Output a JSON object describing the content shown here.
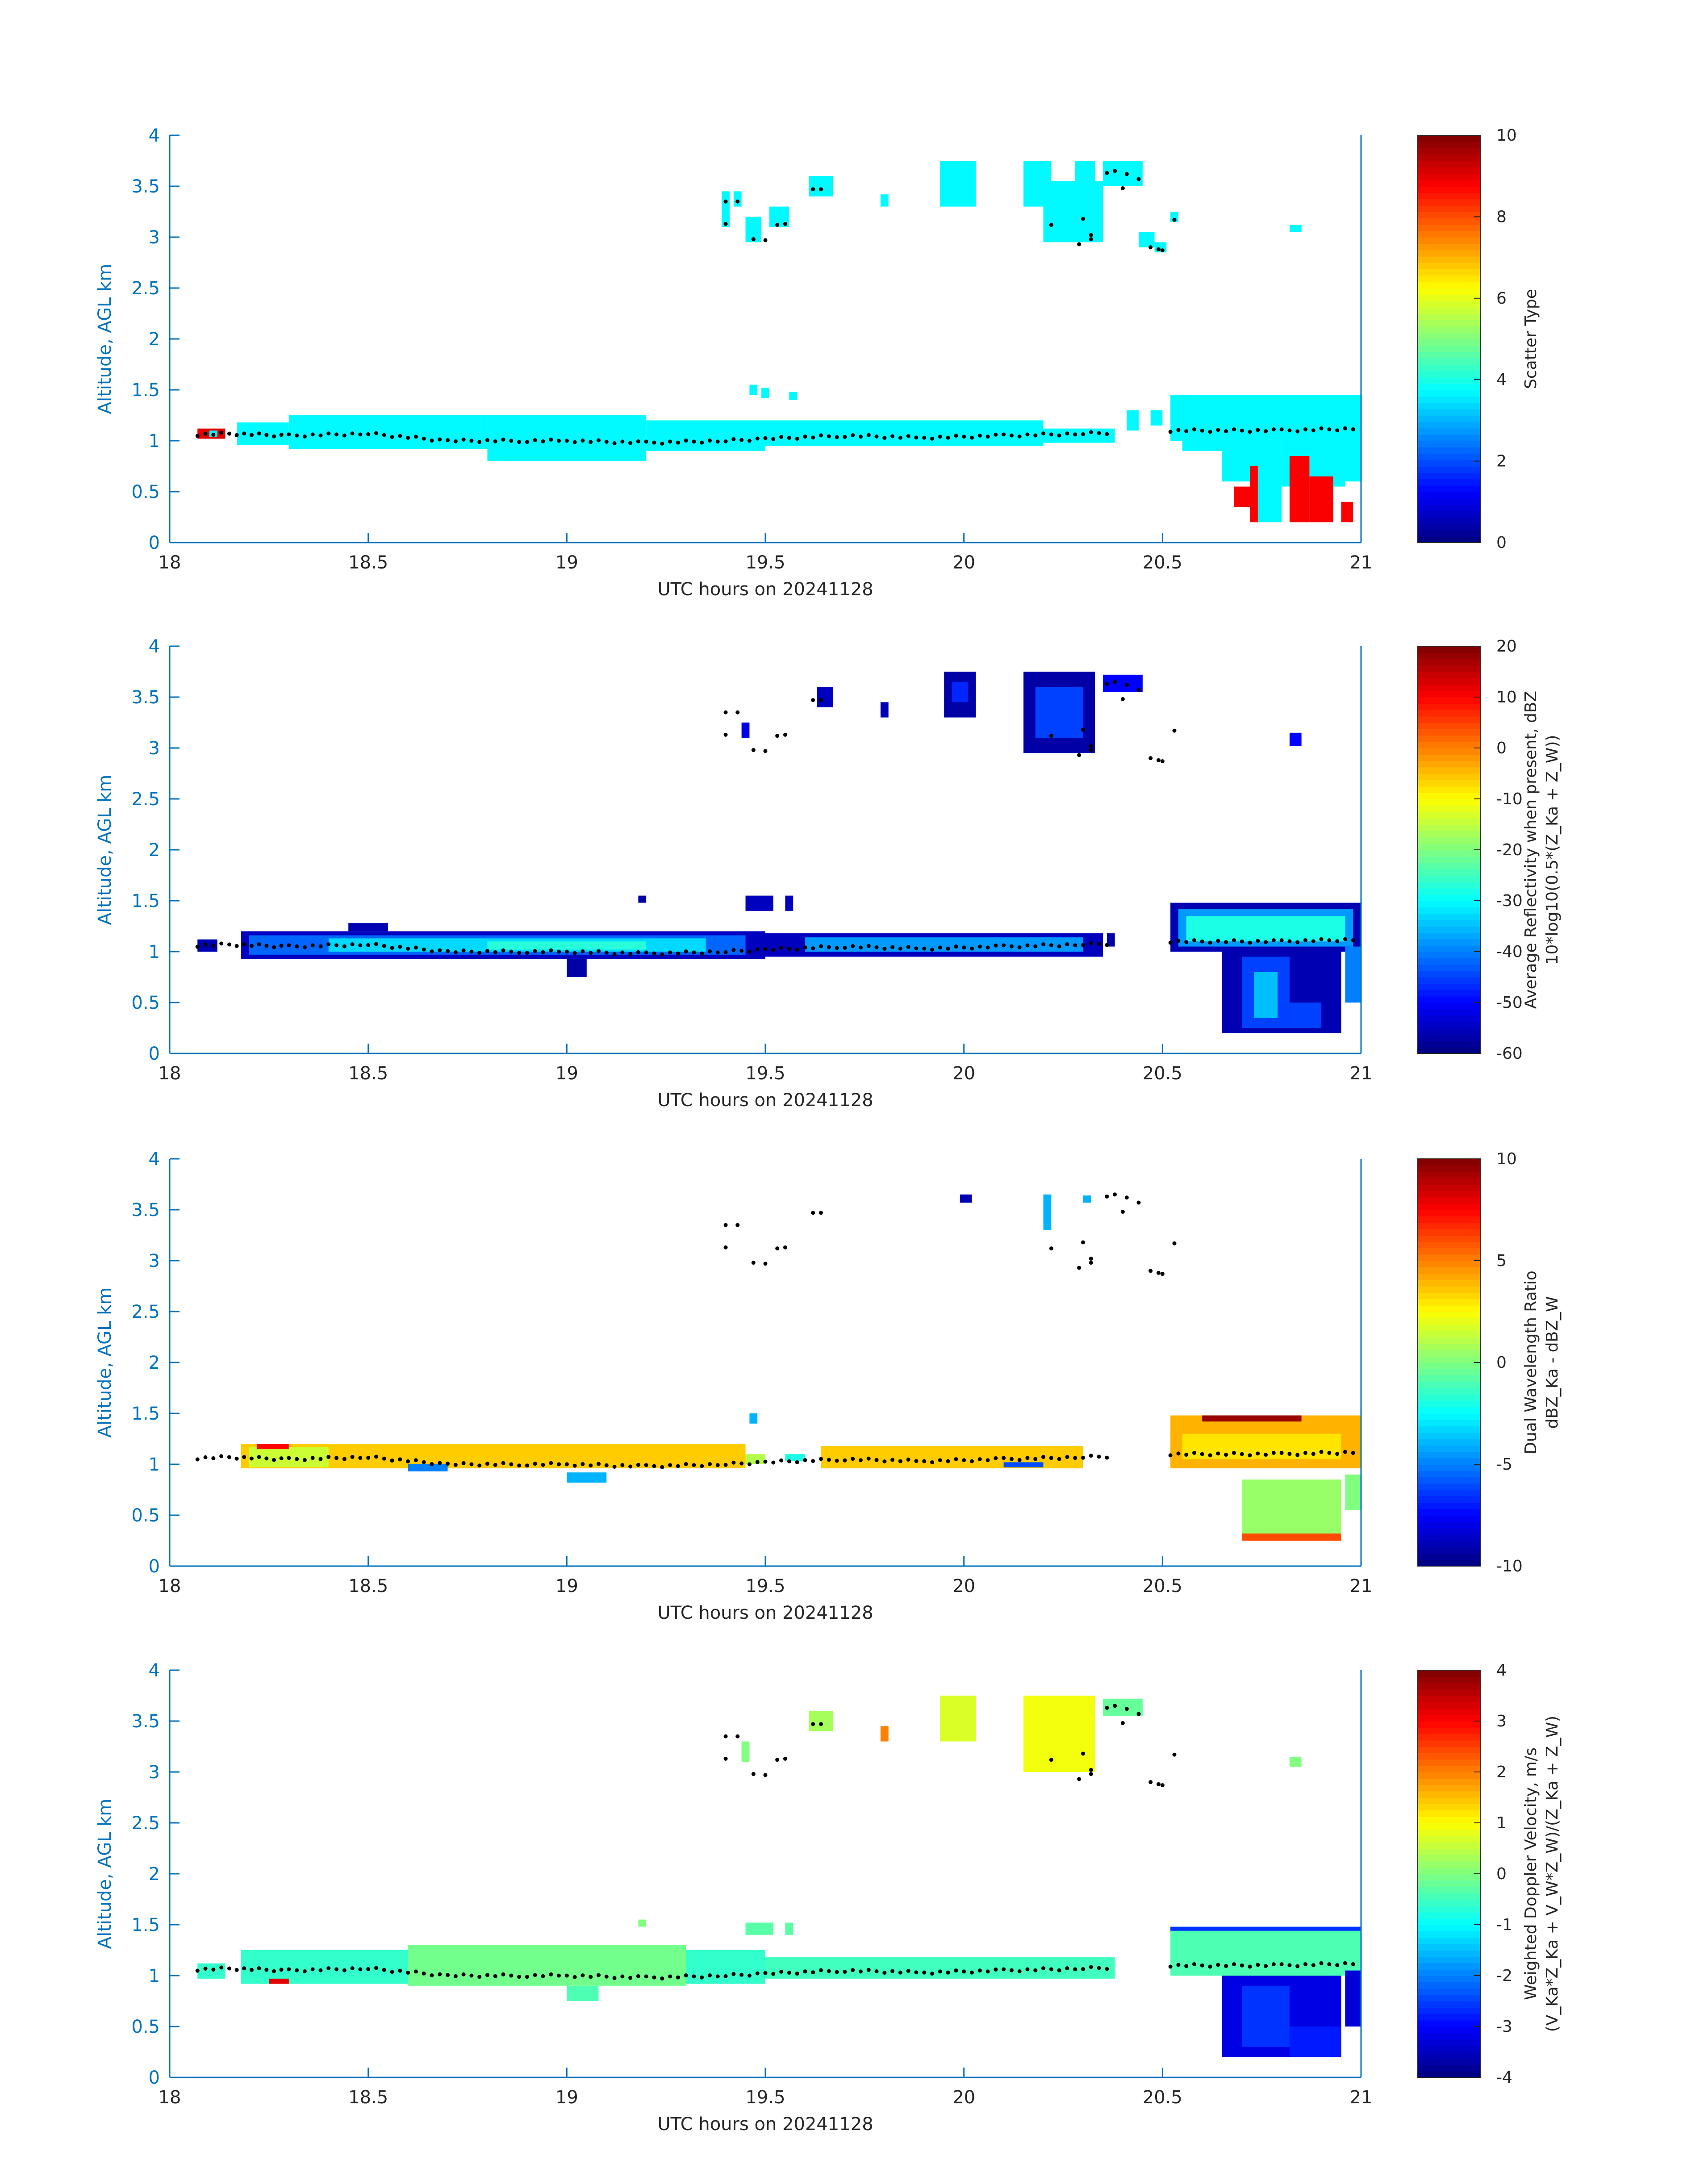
{
  "figure": {
    "date_label": "UTC hours on 20241128",
    "colormap": "jet"
  },
  "chart_data": [
    {
      "type": "heatmap",
      "ylabel": "Altitude, AGL km",
      "xlabel": "UTC hours on 20241128",
      "xlim": [
        18,
        21
      ],
      "ylim": [
        0,
        4
      ],
      "xticks": [
        "18",
        "18.5",
        "19",
        "19.5",
        "20",
        "20.5",
        "21"
      ],
      "yticks": [
        "0",
        "0.5",
        "1",
        "1.5",
        "2",
        "2.5",
        "3",
        "3.5",
        "4"
      ],
      "colorbar": {
        "label": [
          "Scatter Type"
        ],
        "clim": [
          0,
          10
        ],
        "ticks": [
          "0",
          "2",
          "4",
          "6",
          "8",
          "10"
        ]
      },
      "regions": [
        {
          "x0": 18.07,
          "x1": 18.14,
          "y0": 1.02,
          "y1": 1.12,
          "v": 9
        },
        {
          "x0": 18.1,
          "x1": 18.12,
          "y0": 1.04,
          "y1": 1.1,
          "v": 3.7
        },
        {
          "x0": 18.17,
          "x1": 18.3,
          "y0": 0.96,
          "y1": 1.18,
          "v": 3.7
        },
        {
          "x0": 18.3,
          "x1": 18.8,
          "y0": 0.92,
          "y1": 1.25,
          "v": 3.7
        },
        {
          "x0": 18.8,
          "x1": 19.2,
          "y0": 0.8,
          "y1": 1.25,
          "v": 3.7
        },
        {
          "x0": 19.2,
          "x1": 19.5,
          "y0": 0.9,
          "y1": 1.2,
          "v": 3.7
        },
        {
          "x0": 19.5,
          "x1": 20.2,
          "y0": 0.95,
          "y1": 1.2,
          "v": 3.7
        },
        {
          "x0": 20.2,
          "x1": 20.38,
          "y0": 0.98,
          "y1": 1.12,
          "v": 3.7
        },
        {
          "x0": 20.41,
          "x1": 20.44,
          "y0": 1.1,
          "y1": 1.3,
          "v": 3.7
        },
        {
          "x0": 20.47,
          "x1": 20.5,
          "y0": 1.15,
          "y1": 1.3,
          "v": 3.7
        },
        {
          "x0": 20.52,
          "x1": 21.0,
          "y0": 1.0,
          "y1": 1.45,
          "v": 3.7
        },
        {
          "x0": 20.55,
          "x1": 20.65,
          "y0": 0.9,
          "y1": 1.05,
          "v": 3.7
        },
        {
          "x0": 20.65,
          "x1": 20.72,
          "y0": 0.6,
          "y1": 1.05,
          "v": 3.7
        },
        {
          "x0": 20.72,
          "x1": 20.8,
          "y0": 0.2,
          "y1": 1.05,
          "v": 3.7
        },
        {
          "x0": 20.8,
          "x1": 20.96,
          "y0": 0.55,
          "y1": 1.05,
          "v": 3.7
        },
        {
          "x0": 20.96,
          "x1": 21.0,
          "y0": 0.6,
          "y1": 1.05,
          "v": 3.7
        },
        {
          "x0": 20.68,
          "x1": 20.72,
          "y0": 0.35,
          "y1": 0.55,
          "v": 8.8
        },
        {
          "x0": 20.72,
          "x1": 20.74,
          "y0": 0.2,
          "y1": 0.75,
          "v": 8.8
        },
        {
          "x0": 20.82,
          "x1": 20.87,
          "y0": 0.2,
          "y1": 0.85,
          "v": 8.8
        },
        {
          "x0": 20.87,
          "x1": 20.93,
          "y0": 0.2,
          "y1": 0.65,
          "v": 8.8
        },
        {
          "x0": 20.95,
          "x1": 20.98,
          "y0": 0.2,
          "y1": 0.4,
          "v": 8.8
        },
        {
          "x0": 19.46,
          "x1": 19.48,
          "y0": 1.45,
          "y1": 1.55,
          "v": 3.7
        },
        {
          "x0": 19.49,
          "x1": 19.51,
          "y0": 1.42,
          "y1": 1.52,
          "v": 3.7
        },
        {
          "x0": 19.56,
          "x1": 19.58,
          "y0": 1.4,
          "y1": 1.48,
          "v": 3.7
        },
        {
          "x0": 19.39,
          "x1": 19.41,
          "y0": 3.1,
          "y1": 3.45,
          "v": 3.7
        },
        {
          "x0": 19.42,
          "x1": 19.44,
          "y0": 3.3,
          "y1": 3.45,
          "v": 3.7
        },
        {
          "x0": 19.45,
          "x1": 19.49,
          "y0": 2.95,
          "y1": 3.2,
          "v": 3.7
        },
        {
          "x0": 19.51,
          "x1": 19.56,
          "y0": 3.1,
          "y1": 3.3,
          "v": 3.7
        },
        {
          "x0": 19.61,
          "x1": 19.67,
          "y0": 3.4,
          "y1": 3.6,
          "v": 3.7
        },
        {
          "x0": 19.79,
          "x1": 19.81,
          "y0": 3.3,
          "y1": 3.42,
          "v": 3.7
        },
        {
          "x0": 19.94,
          "x1": 20.03,
          "y0": 3.3,
          "y1": 3.75,
          "v": 3.7
        },
        {
          "x0": 20.15,
          "x1": 20.22,
          "y0": 3.3,
          "y1": 3.75,
          "v": 3.7
        },
        {
          "x0": 20.2,
          "x1": 20.35,
          "y0": 2.95,
          "y1": 3.55,
          "v": 3.7
        },
        {
          "x0": 20.28,
          "x1": 20.33,
          "y0": 3.5,
          "y1": 3.75,
          "v": 3.7
        },
        {
          "x0": 20.35,
          "x1": 20.45,
          "y0": 3.5,
          "y1": 3.75,
          "v": 3.7
        },
        {
          "x0": 20.44,
          "x1": 20.48,
          "y0": 2.9,
          "y1": 3.05,
          "v": 3.7
        },
        {
          "x0": 20.48,
          "x1": 20.51,
          "y0": 2.85,
          "y1": 2.95,
          "v": 3.7
        },
        {
          "x0": 20.52,
          "x1": 20.54,
          "y0": 3.15,
          "y1": 3.25,
          "v": 3.7
        },
        {
          "x0": 20.82,
          "x1": 20.85,
          "y0": 3.05,
          "y1": 3.12,
          "v": 3.7
        }
      ]
    },
    {
      "type": "heatmap",
      "ylabel": "Altitude, AGL km",
      "xlabel": "UTC hours on 20241128",
      "xlim": [
        18,
        21
      ],
      "ylim": [
        0,
        4
      ],
      "xticks": [
        "18",
        "18.5",
        "19",
        "19.5",
        "20",
        "20.5",
        "21"
      ],
      "yticks": [
        "0",
        "0.5",
        "1",
        "1.5",
        "2",
        "2.5",
        "3",
        "3.5",
        "4"
      ],
      "colorbar": {
        "label": [
          "Average Reflectivity when present, dBZ",
          "10*log10(0.5*(Z_Ka + Z_W))"
        ],
        "clim": [
          -60,
          20
        ],
        "ticks": [
          "-60",
          "-50",
          "-40",
          "-30",
          "-20",
          "-10",
          "0",
          "10",
          "20"
        ]
      },
      "regions": [
        {
          "x0": 18.07,
          "x1": 18.12,
          "y0": 1.0,
          "y1": 1.12,
          "v": -56
        },
        {
          "x0": 18.18,
          "x1": 19.5,
          "y0": 0.93,
          "y1": 1.2,
          "v": -55
        },
        {
          "x0": 18.2,
          "x1": 19.45,
          "y0": 0.97,
          "y1": 1.16,
          "v": -42
        },
        {
          "x0": 18.4,
          "x1": 19.35,
          "y0": 1.0,
          "y1": 1.13,
          "v": -33
        },
        {
          "x0": 18.8,
          "x1": 19.2,
          "y0": 1.02,
          "y1": 1.1,
          "v": -27
        },
        {
          "x0": 18.45,
          "x1": 18.55,
          "y0": 1.2,
          "y1": 1.28,
          "v": -56
        },
        {
          "x0": 19.0,
          "x1": 19.05,
          "y0": 0.75,
          "y1": 0.93,
          "v": -57
        },
        {
          "x0": 19.18,
          "x1": 19.2,
          "y0": 1.48,
          "y1": 1.55,
          "v": -57
        },
        {
          "x0": 19.5,
          "x1": 20.35,
          "y0": 0.95,
          "y1": 1.18,
          "v": -55
        },
        {
          "x0": 19.6,
          "x1": 20.3,
          "y0": 1.0,
          "y1": 1.14,
          "v": -38
        },
        {
          "x0": 19.45,
          "x1": 19.52,
          "y0": 1.4,
          "y1": 1.55,
          "v": -55
        },
        {
          "x0": 19.55,
          "x1": 19.57,
          "y0": 1.4,
          "y1": 1.55,
          "v": -55
        },
        {
          "x0": 20.36,
          "x1": 20.38,
          "y0": 1.05,
          "y1": 1.18,
          "v": -57
        },
        {
          "x0": 20.52,
          "x1": 21.0,
          "y0": 1.0,
          "y1": 1.48,
          "v": -56
        },
        {
          "x0": 20.54,
          "x1": 20.98,
          "y0": 1.05,
          "y1": 1.42,
          "v": -38
        },
        {
          "x0": 20.56,
          "x1": 20.96,
          "y0": 1.1,
          "y1": 1.35,
          "v": -28
        },
        {
          "x0": 20.65,
          "x1": 20.95,
          "y0": 0.2,
          "y1": 1.0,
          "v": -56
        },
        {
          "x0": 20.7,
          "x1": 20.82,
          "y0": 0.25,
          "y1": 0.95,
          "v": -45
        },
        {
          "x0": 20.73,
          "x1": 20.79,
          "y0": 0.35,
          "y1": 0.8,
          "v": -35
        },
        {
          "x0": 20.82,
          "x1": 20.9,
          "y0": 0.25,
          "y1": 0.5,
          "v": -45
        },
        {
          "x0": 20.96,
          "x1": 21.0,
          "y0": 0.5,
          "y1": 1.05,
          "v": -40
        },
        {
          "x0": 19.44,
          "x1": 19.46,
          "y0": 3.1,
          "y1": 3.25,
          "v": -52
        },
        {
          "x0": 19.63,
          "x1": 19.67,
          "y0": 3.4,
          "y1": 3.6,
          "v": -55
        },
        {
          "x0": 19.79,
          "x1": 19.81,
          "y0": 3.3,
          "y1": 3.45,
          "v": -56
        },
        {
          "x0": 19.95,
          "x1": 20.03,
          "y0": 3.3,
          "y1": 3.75,
          "v": -57
        },
        {
          "x0": 19.97,
          "x1": 20.01,
          "y0": 3.45,
          "y1": 3.65,
          "v": -47
        },
        {
          "x0": 20.15,
          "x1": 20.33,
          "y0": 2.95,
          "y1": 3.75,
          "v": -57
        },
        {
          "x0": 20.18,
          "x1": 20.3,
          "y0": 3.1,
          "y1": 3.6,
          "v": -45
        },
        {
          "x0": 20.35,
          "x1": 20.45,
          "y0": 3.55,
          "y1": 3.72,
          "v": -50
        },
        {
          "x0": 20.82,
          "x1": 20.85,
          "y0": 3.02,
          "y1": 3.15,
          "v": -50
        }
      ]
    },
    {
      "type": "heatmap",
      "ylabel": "Altitude, AGL km",
      "xlabel": "UTC hours on 20241128",
      "xlim": [
        18,
        21
      ],
      "ylim": [
        0,
        4
      ],
      "xticks": [
        "18",
        "18.5",
        "19",
        "19.5",
        "20",
        "20.5",
        "21"
      ],
      "yticks": [
        "0",
        "0.5",
        "1",
        "1.5",
        "2",
        "2.5",
        "3",
        "3.5",
        "4"
      ],
      "colorbar": {
        "label": [
          "Dual Wavelength Ratio",
          "dBZ_Ka - dBZ_W"
        ],
        "clim": [
          -10,
          10
        ],
        "ticks": [
          "-10",
          "-5",
          "0",
          "5",
          "10"
        ]
      },
      "regions": [
        {
          "x0": 18.18,
          "x1": 19.45,
          "y0": 0.96,
          "y1": 1.2,
          "v": 3.5
        },
        {
          "x0": 18.2,
          "x1": 18.4,
          "y0": 0.97,
          "y1": 1.17,
          "v": 1.5
        },
        {
          "x0": 18.6,
          "x1": 18.7,
          "y0": 0.93,
          "y1": 1.0,
          "v": -5
        },
        {
          "x0": 19.0,
          "x1": 19.1,
          "y0": 0.82,
          "y1": 0.92,
          "v": -4
        },
        {
          "x0": 18.22,
          "x1": 18.3,
          "y0": 1.15,
          "y1": 1.2,
          "v": 7.5
        },
        {
          "x0": 19.45,
          "x1": 19.5,
          "y0": 1.0,
          "y1": 1.1,
          "v": 1
        },
        {
          "x0": 19.64,
          "x1": 20.3,
          "y0": 0.96,
          "y1": 1.18,
          "v": 3.5
        },
        {
          "x0": 19.55,
          "x1": 19.6,
          "y0": 1.03,
          "y1": 1.1,
          "v": -2
        },
        {
          "x0": 20.1,
          "x1": 20.2,
          "y0": 0.97,
          "y1": 1.02,
          "v": -6
        },
        {
          "x0": 19.46,
          "x1": 19.48,
          "y0": 1.4,
          "y1": 1.5,
          "v": -4
        },
        {
          "x0": 20.52,
          "x1": 21.0,
          "y0": 0.96,
          "y1": 1.48,
          "v": 4
        },
        {
          "x0": 20.6,
          "x1": 20.85,
          "y0": 1.42,
          "y1": 1.48,
          "v": 9.5
        },
        {
          "x0": 20.55,
          "x1": 20.95,
          "y0": 1.05,
          "y1": 1.3,
          "v": 3
        },
        {
          "x0": 20.7,
          "x1": 20.95,
          "y0": 0.25,
          "y1": 0.85,
          "v": 0.5
        },
        {
          "x0": 20.7,
          "x1": 20.95,
          "y0": 0.25,
          "y1": 0.32,
          "v": 6
        },
        {
          "x0": 20.96,
          "x1": 21.0,
          "y0": 0.55,
          "y1": 0.9,
          "v": 0
        },
        {
          "x0": 19.99,
          "x1": 20.02,
          "y0": 3.57,
          "y1": 3.65,
          "v": -9
        },
        {
          "x0": 20.2,
          "x1": 20.22,
          "y0": 3.3,
          "y1": 3.65,
          "v": -4
        },
        {
          "x0": 20.3,
          "x1": 20.32,
          "y0": 3.57,
          "y1": 3.64,
          "v": -4
        }
      ]
    },
    {
      "type": "heatmap",
      "ylabel": "Altitude, AGL km",
      "xlabel": "UTC hours on 20241128",
      "xlim": [
        18,
        21
      ],
      "ylim": [
        0,
        4
      ],
      "xticks": [
        "18",
        "18.5",
        "19",
        "19.5",
        "20",
        "20.5",
        "21"
      ],
      "yticks": [
        "0",
        "0.5",
        "1",
        "1.5",
        "2",
        "2.5",
        "3",
        "3.5",
        "4"
      ],
      "colorbar": {
        "label": [
          "Weighted Doppler Velocity, m/s",
          "(V_Ka*Z_Ka + V_W*Z_W)/(Z_Ka + Z_W)"
        ],
        "clim": [
          -4,
          4
        ],
        "ticks": [
          "-4",
          "-3",
          "-2",
          "-1",
          "0",
          "1",
          "2",
          "3",
          "4"
        ]
      },
      "regions": [
        {
          "x0": 18.07,
          "x1": 18.14,
          "y0": 0.97,
          "y1": 1.12,
          "v": -0.6
        },
        {
          "x0": 18.18,
          "x1": 19.5,
          "y0": 0.92,
          "y1": 1.25,
          "v": -0.6
        },
        {
          "x0": 18.6,
          "x1": 19.3,
          "y0": 0.9,
          "y1": 1.3,
          "v": -0.1
        },
        {
          "x0": 19.0,
          "x1": 19.08,
          "y0": 0.75,
          "y1": 0.9,
          "v": -0.4
        },
        {
          "x0": 18.25,
          "x1": 18.3,
          "y0": 0.92,
          "y1": 0.97,
          "v": 3.2
        },
        {
          "x0": 19.18,
          "x1": 19.2,
          "y0": 1.48,
          "y1": 1.55,
          "v": 0
        },
        {
          "x0": 19.5,
          "x1": 20.38,
          "y0": 0.97,
          "y1": 1.18,
          "v": -0.5
        },
        {
          "x0": 19.45,
          "x1": 19.52,
          "y0": 1.4,
          "y1": 1.52,
          "v": -0.3
        },
        {
          "x0": 19.55,
          "x1": 19.57,
          "y0": 1.4,
          "y1": 1.52,
          "v": -0.3
        },
        {
          "x0": 20.52,
          "x1": 21.0,
          "y0": 1.0,
          "y1": 1.48,
          "v": -0.4
        },
        {
          "x0": 20.52,
          "x1": 21.0,
          "y0": 1.44,
          "y1": 1.48,
          "v": -2.6
        },
        {
          "x0": 20.65,
          "x1": 20.95,
          "y0": 0.2,
          "y1": 1.0,
          "v": -3.2
        },
        {
          "x0": 20.7,
          "x1": 20.82,
          "y0": 0.3,
          "y1": 0.9,
          "v": -2.6
        },
        {
          "x0": 20.82,
          "x1": 20.95,
          "y0": 0.2,
          "y1": 0.5,
          "v": -2.8
        },
        {
          "x0": 20.96,
          "x1": 21.0,
          "y0": 0.5,
          "y1": 1.05,
          "v": -3.3
        },
        {
          "x0": 19.44,
          "x1": 19.46,
          "y0": 3.1,
          "y1": 3.3,
          "v": 0
        },
        {
          "x0": 19.61,
          "x1": 19.67,
          "y0": 3.4,
          "y1": 3.6,
          "v": 0.3
        },
        {
          "x0": 19.79,
          "x1": 19.81,
          "y0": 3.3,
          "y1": 3.45,
          "v": 2
        },
        {
          "x0": 19.94,
          "x1": 20.03,
          "y0": 3.3,
          "y1": 3.75,
          "v": 0.7
        },
        {
          "x0": 20.15,
          "x1": 20.33,
          "y0": 3.0,
          "y1": 3.75,
          "v": 0.9
        },
        {
          "x0": 20.35,
          "x1": 20.45,
          "y0": 3.55,
          "y1": 3.72,
          "v": -0.2
        },
        {
          "x0": 20.82,
          "x1": 20.85,
          "y0": 3.05,
          "y1": 3.15,
          "v": 0
        }
      ]
    }
  ],
  "cloud_top_dots": {
    "boundary_x": [
      18.07,
      18.15,
      18.3,
      18.5,
      18.7,
      18.9,
      19.0,
      19.2,
      19.4,
      19.5,
      19.7,
      19.9,
      20.1,
      20.3,
      20.38
    ],
    "boundary_y": [
      1.06,
      1.07,
      1.05,
      1.07,
      1.0,
      1.0,
      1.0,
      0.98,
      1.0,
      1.02,
      1.05,
      1.03,
      1.05,
      1.07,
      1.08
    ],
    "boundary2_x": [
      20.52,
      20.6,
      20.8,
      21.0
    ],
    "boundary2_y": [
      1.1,
      1.1,
      1.1,
      1.12
    ],
    "upper_x": [
      19.4,
      19.43,
      19.4,
      19.47,
      19.5,
      19.53,
      19.55,
      19.62,
      19.64,
      20.22,
      20.29,
      20.3,
      20.32,
      20.36,
      20.38,
      20.4,
      20.44,
      20.41,
      20.47,
      20.49,
      20.5,
      20.53,
      20.32
    ],
    "upper_y": [
      3.35,
      3.35,
      3.13,
      2.98,
      2.97,
      3.12,
      3.13,
      3.47,
      3.47,
      3.12,
      2.93,
      3.18,
      3.02,
      3.63,
      3.65,
      3.48,
      3.57,
      3.62,
      2.9,
      2.88,
      2.87,
      3.17,
      2.98
    ]
  }
}
